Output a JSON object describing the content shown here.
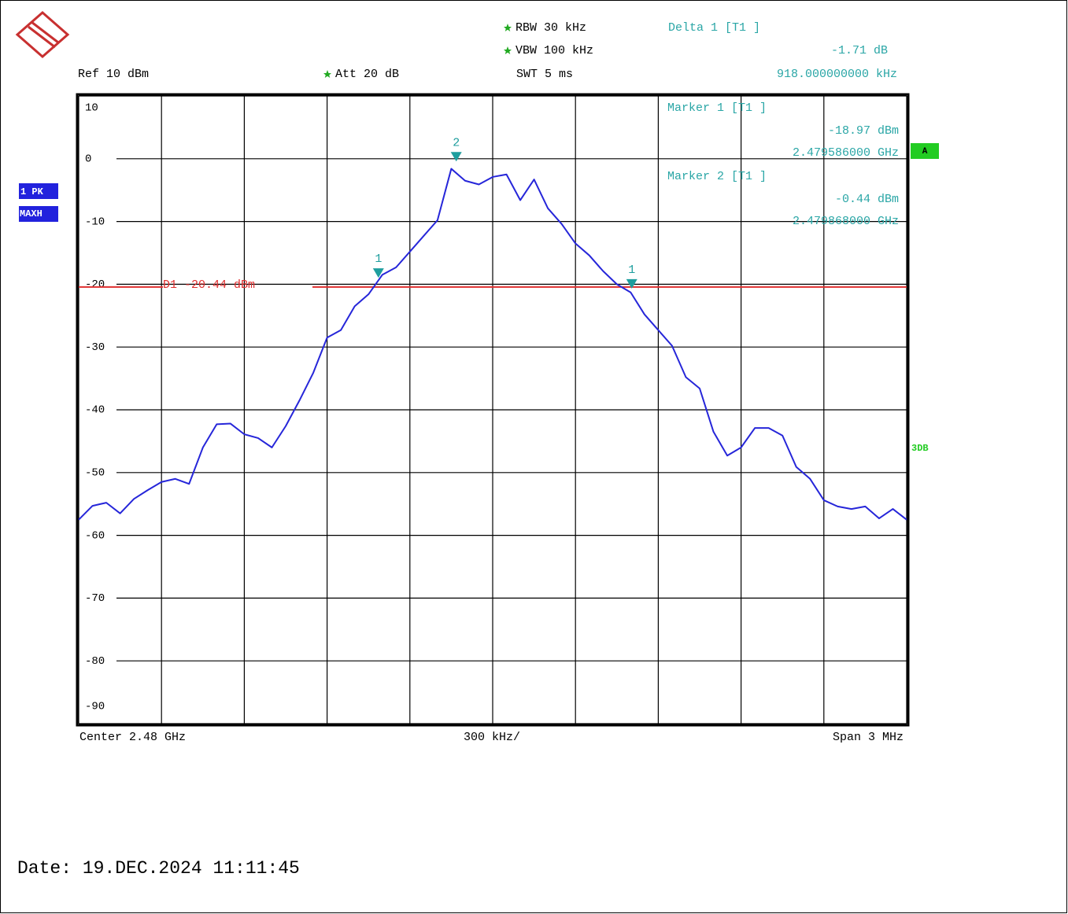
{
  "chart_data": {
    "type": "line",
    "header": {
      "rbw": "RBW 30 kHz",
      "vbw": "VBW 100 kHz",
      "swt": "SWT 5 ms",
      "ref": "Ref 10 dBm",
      "att": "Att 20 dB",
      "delta_title": "Delta 1 [T1 ]",
      "delta_level": "-1.71 dB",
      "delta_freq": "918.000000000 kHz"
    },
    "marker_info": [
      {
        "title": "Marker 1 [T1 ]",
        "level": "-18.97 dBm",
        "freq": "2.479586000 GHz"
      },
      {
        "title": "Marker 2 [T1 ]",
        "level": "-0.44 dBm",
        "freq": "2.479868000 GHz"
      }
    ],
    "side_labels": {
      "trace": "1 PK",
      "detector": "MAXH",
      "screen": "A",
      "limit": "3DB"
    },
    "x_labels": {
      "center": "Center 2.48 GHz",
      "step": "300 kHz/",
      "span": "Span 3 MHz"
    },
    "date": "Date: 19.DEC.2024  11:11:45",
    "xlim": [
      2478.5,
      2481.5
    ],
    "xticks": [
      2478.5,
      2478.8,
      2479.1,
      2479.4,
      2479.7,
      2480.0,
      2480.3,
      2480.6,
      2480.9,
      2481.2,
      2481.5
    ],
    "ylim": [
      -90,
      10
    ],
    "yticks": [
      10,
      0,
      -10,
      -20,
      -30,
      -40,
      -50,
      -60,
      -70,
      -80,
      -90
    ],
    "grid": true,
    "color": "#2626d9",
    "x": [
      2478.5,
      2478.55,
      2478.6,
      2478.65,
      2478.7,
      2478.75,
      2478.8,
      2478.85,
      2478.9,
      2478.95,
      2479.0,
      2479.05,
      2479.1,
      2479.15,
      2479.2,
      2479.25,
      2479.3,
      2479.35,
      2479.4,
      2479.45,
      2479.5,
      2479.55,
      2479.6,
      2479.65,
      2479.7,
      2479.75,
      2479.8,
      2479.85,
      2479.9,
      2479.95,
      2480.0,
      2480.05,
      2480.1,
      2480.15,
      2480.2,
      2480.25,
      2480.3,
      2480.35,
      2480.4,
      2480.45,
      2480.5,
      2480.55,
      2480.6,
      2480.65,
      2480.7,
      2480.75,
      2480.8,
      2480.85,
      2480.9,
      2480.95,
      2481.0,
      2481.05,
      2481.1,
      2481.15,
      2481.2,
      2481.25,
      2481.3,
      2481.35,
      2481.4,
      2481.45,
      2481.5
    ],
    "values": [
      -57.5,
      -55.3,
      -54.8,
      -56.5,
      -54.2,
      -52.8,
      -51.5,
      -51,
      -51.8,
      -46,
      -42.3,
      -42.2,
      -43.9,
      -44.5,
      -46,
      -42.6,
      -38.5,
      -34.1,
      -28.5,
      -27.3,
      -23.5,
      -21.6,
      -18.5,
      -17.3,
      -14.8,
      -12.3,
      -9.8,
      -1.6,
      -3.5,
      -4.1,
      -2.9,
      -2.5,
      -6.6,
      -3.3,
      -7.9,
      -10.4,
      -13.5,
      -15.4,
      -17.9,
      -20,
      -21.3,
      -24.8,
      -27.3,
      -29.8,
      -34.8,
      -36.6,
      -43.5,
      -47.3,
      -46,
      -42.9,
      -42.9,
      -44.1,
      -49.1,
      -51,
      -54.4,
      -55.4,
      -55.8,
      -55.4,
      -57.3,
      -55.8,
      -57.5
    ],
    "display_line": {
      "label": "D1 -20.44 dBm",
      "value": -20.44,
      "color": "#e03030"
    },
    "marker_color": "#1e9e9e",
    "markers": [
      {
        "name": "1",
        "x": 2479.586,
        "y": -18.97
      },
      {
        "name": "2",
        "x": 2479.868,
        "y": -0.44
      },
      {
        "name": "1",
        "x": 2480.504,
        "y": -20.68
      }
    ]
  }
}
